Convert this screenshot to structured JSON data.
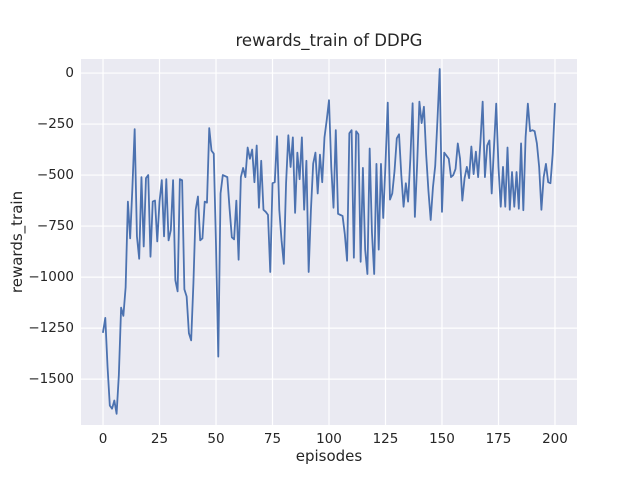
{
  "figure": {
    "title": "rewards_train of DDPG",
    "xlabel": "episodes",
    "ylabel": "rewards_train"
  },
  "chart_data": {
    "type": "line",
    "title": "rewards_train of DDPG",
    "xlabel": "episodes",
    "ylabel": "rewards_train",
    "grid": true,
    "legend_position": "none",
    "xlim": [
      -9.75,
      209.75
    ],
    "ylim": [
      -1725,
      69
    ],
    "x_ticks": {
      "values": [
        0,
        25,
        50,
        75,
        100,
        125,
        150,
        175,
        200
      ],
      "labels": [
        "0",
        "25",
        "50",
        "75",
        "100",
        "125",
        "150",
        "175",
        "200"
      ]
    },
    "y_ticks": {
      "values": [
        0,
        -250,
        -500,
        -750,
        -1000,
        -1250,
        -1500
      ],
      "labels": [
        "0",
        "−250",
        "−500",
        "−750",
        "−1000",
        "−1250",
        "−1500"
      ]
    },
    "styles": {
      "plot_background": "#EAEAF2",
      "grid_color": "#FFFFFF",
      "line_color": "#4C72B0",
      "text_color": "#262626",
      "figure_background": "#FFFFFF"
    },
    "series": [
      {
        "name": "rewards_train",
        "color": "#4C72B0",
        "x_start": 0,
        "x_step": 1,
        "values": [
          -1270,
          -1200,
          -1440,
          -1630,
          -1645,
          -1605,
          -1670,
          -1480,
          -1150,
          -1190,
          -1050,
          -630,
          -810,
          -560,
          -275,
          -800,
          -910,
          -510,
          -850,
          -515,
          -500,
          -900,
          -630,
          -625,
          -825,
          -630,
          -525,
          -800,
          -520,
          -820,
          -770,
          -525,
          -1015,
          -1070,
          -520,
          -525,
          -1060,
          -1095,
          -1275,
          -1310,
          -1030,
          -670,
          -605,
          -820,
          -810,
          -630,
          -635,
          -270,
          -380,
          -395,
          -845,
          -1390,
          -590,
          -500,
          -505,
          -510,
          -665,
          -805,
          -815,
          -625,
          -915,
          -510,
          -465,
          -510,
          -365,
          -420,
          -375,
          -535,
          -355,
          -660,
          -430,
          -670,
          -680,
          -695,
          -975,
          -540,
          -535,
          -310,
          -670,
          -820,
          -935,
          -540,
          -305,
          -460,
          -315,
          -685,
          -390,
          -520,
          -315,
          -670,
          -430,
          -975,
          -672,
          -444,
          -390,
          -590,
          -400,
          -535,
          -315,
          -230,
          -133,
          -460,
          -660,
          -280,
          -690,
          -695,
          -700,
          -790,
          -920,
          -295,
          -280,
          -905,
          -285,
          -300,
          -925,
          -465,
          -865,
          -985,
          -370,
          -780,
          -985,
          -445,
          -865,
          -445,
          -710,
          -445,
          -145,
          -620,
          -590,
          -480,
          -320,
          -300,
          -500,
          -655,
          -540,
          -630,
          -420,
          -148,
          -705,
          -450,
          -140,
          -245,
          -165,
          -400,
          -577,
          -720,
          -560,
          -455,
          -230,
          20,
          -680,
          -390,
          -405,
          -420,
          -510,
          -500,
          -470,
          -345,
          -420,
          -625,
          -515,
          -460,
          -515,
          -360,
          -495,
          -385,
          -510,
          -340,
          -140,
          -510,
          -355,
          -330,
          -590,
          -365,
          -150,
          -460,
          -655,
          -460,
          -655,
          -365,
          -670,
          -485,
          -655,
          -485,
          -665,
          -345,
          -672,
          -315,
          -150,
          -285,
          -280,
          -285,
          -345,
          -460,
          -670,
          -510,
          -445,
          -535,
          -540,
          -395,
          -150
        ]
      }
    ]
  }
}
